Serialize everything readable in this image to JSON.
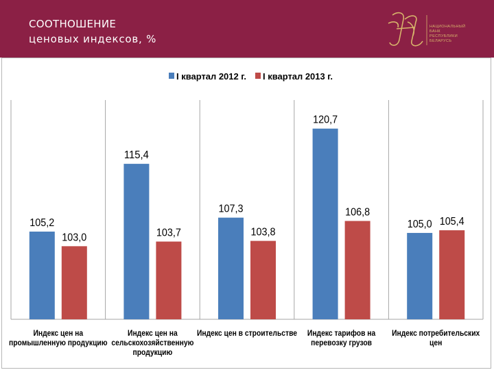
{
  "header": {
    "title_line1": "СООТНОШЕНИЕ",
    "title_line2": "ценовых индексов, %",
    "logo_text": [
      "НАЦИОНАЛЬНЫЙ",
      "БАНК",
      "РЕСПУБЛИКИ",
      "БЕЛАРУСЬ"
    ],
    "background_color": "#8b2045",
    "logo_color": "#d7b46b"
  },
  "chart_data": {
    "type": "bar",
    "categories": [
      [
        "Индекс цен на",
        "промышленную продукцию"
      ],
      [
        "Индекс цен на",
        "сельскохозяйственную",
        "продукцию"
      ],
      [
        "Индекс цен в строительстве"
      ],
      [
        "Индекс тарифов на",
        "перевозку грузов"
      ],
      [
        "Индекс потребительских",
        "цен"
      ]
    ],
    "series": [
      {
        "name": "I квартал 2012 г.",
        "color": "#4a7ebb",
        "values": [
          105.2,
          115.4,
          107.3,
          120.7,
          105.0
        ],
        "labels": [
          "105,2",
          "115,4",
          "107,3",
          "120,7",
          "105,0"
        ]
      },
      {
        "name": "I квартал 2013 г.",
        "color": "#be4b48",
        "values": [
          103.0,
          103.7,
          103.8,
          106.8,
          105.4
        ],
        "labels": [
          "103,0",
          "103,7",
          "103,8",
          "106,8",
          "105,4"
        ]
      }
    ],
    "ylim": [
      92,
      125
    ],
    "legend_position": "top",
    "grid": "vertical-category-separators"
  }
}
